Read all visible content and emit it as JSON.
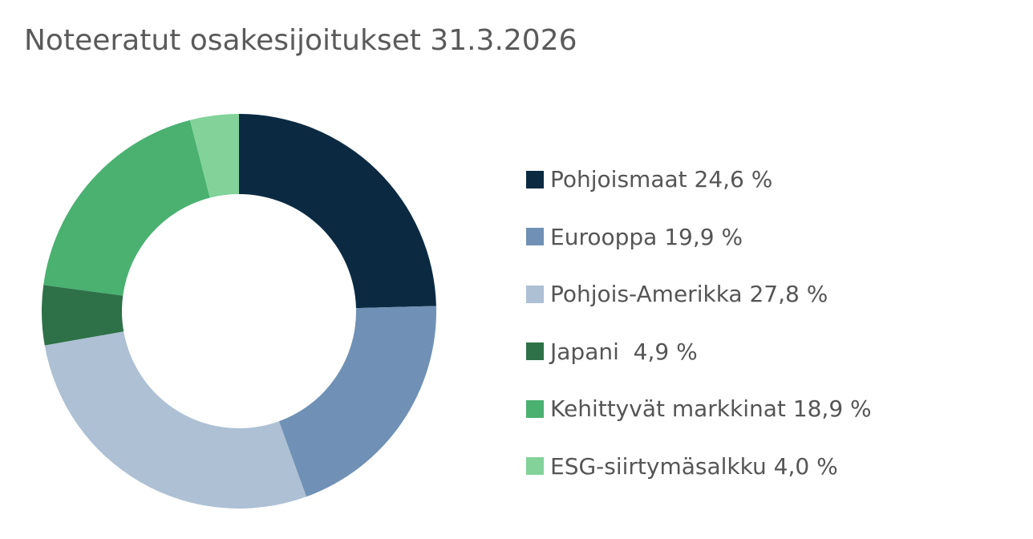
{
  "title": "Noteeratut osakesijoitukset 31.3.2026",
  "chart_data": {
    "type": "pie",
    "title": "Noteeratut osakesijoitukset 31.3.2026",
    "categories": [
      "Pohjoismaat",
      "Eurooppa",
      "Pohjois-Amerikka",
      "Japani",
      "Kehittyvät markkinat",
      "ESG-siirtymäsalkku"
    ],
    "values": [
      24.6,
      19.9,
      27.8,
      4.9,
      18.9,
      4.0
    ],
    "unit": "%",
    "colors": [
      "#0b2a42",
      "#7091b5",
      "#adc0d4",
      "#2e7148",
      "#4ab171",
      "#82d29a"
    ],
    "donut": true,
    "legend_position": "right",
    "legend": [
      "Pohjoismaat 24,6 %",
      "Eurooppa 19,9 %",
      "Pohjois-Amerikka 27,8 %",
      "Japani  4,9 %",
      "Kehittyvät markkinat 18,9 %",
      "ESG-siirtymäsalkku 4,0 %"
    ]
  }
}
